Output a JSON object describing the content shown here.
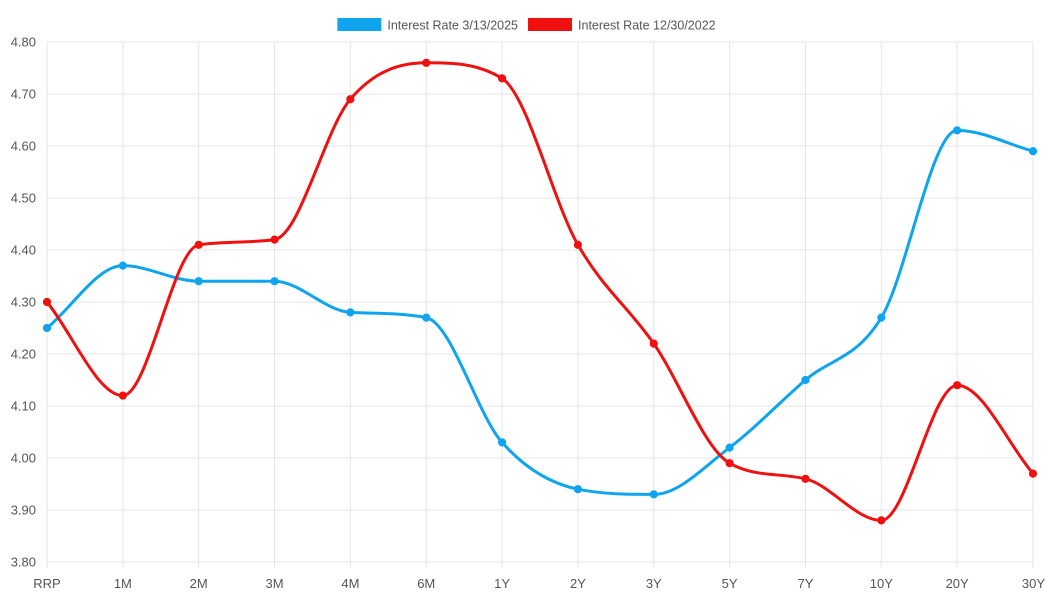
{
  "chart_data": {
    "type": "line",
    "title": "",
    "xlabel": "",
    "ylabel": "",
    "categories": [
      "RRP",
      "1M",
      "2M",
      "3M",
      "4M",
      "6M",
      "1Y",
      "2Y",
      "3Y",
      "5Y",
      "7Y",
      "10Y",
      "20Y",
      "30Y"
    ],
    "ylim": [
      3.8,
      4.8
    ],
    "yticks": [
      "4.80",
      "4.70",
      "4.60",
      "4.50",
      "4.40",
      "4.30",
      "4.20",
      "4.10",
      "4.00",
      "3.90",
      "3.80"
    ],
    "grid": true,
    "legend_position": "top-center",
    "series": [
      {
        "name": "Interest Rate 3/13/2025",
        "color": "#0ea5ee",
        "values": [
          4.25,
          4.37,
          4.34,
          4.34,
          4.28,
          4.27,
          4.03,
          3.94,
          3.93,
          4.02,
          4.15,
          4.27,
          4.63,
          4.59
        ]
      },
      {
        "name": "Interest Rate 12/30/2022",
        "color": "#f01010",
        "values": [
          4.3,
          4.12,
          4.41,
          4.42,
          4.69,
          4.76,
          4.73,
          4.41,
          4.22,
          3.99,
          3.96,
          3.88,
          4.14,
          3.97
        ]
      }
    ]
  }
}
